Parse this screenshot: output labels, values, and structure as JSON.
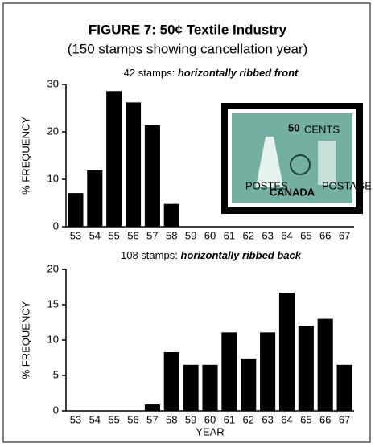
{
  "title": "FIGURE 7: 50¢ Textile Industry",
  "subtitle": "(150 stamps showing cancellation year)",
  "stamp": {
    "denomination": "50",
    "cents": "CENTS",
    "country": "CANADA",
    "left": "POSTES",
    "right": "POSTAGE"
  },
  "chart_data": [
    {
      "type": "bar",
      "title": "42 stamps:",
      "title_emphasis": "horizontally ribbed front",
      "ylabel": "% FREQUENCY",
      "color": "#000000",
      "categories": [
        "53",
        "54",
        "55",
        "56",
        "57",
        "58",
        "59",
        "60",
        "61",
        "62",
        "63",
        "64",
        "65",
        "66",
        "67"
      ],
      "values": [
        7.1,
        11.9,
        28.6,
        26.2,
        21.4,
        4.8,
        0,
        0,
        0,
        0,
        0,
        0,
        0,
        0,
        0
      ],
      "ylim": [
        0,
        30
      ],
      "yticks": [
        0,
        10,
        20,
        30
      ]
    },
    {
      "type": "bar",
      "title": "108 stamps:",
      "title_emphasis": "horizontally ribbed back",
      "ylabel": "% FREQUENCY",
      "xlabel": "YEAR",
      "color": "#000000",
      "categories": [
        "53",
        "54",
        "55",
        "56",
        "57",
        "58",
        "59",
        "60",
        "61",
        "62",
        "63",
        "64",
        "65",
        "66",
        "67"
      ],
      "values": [
        0,
        0,
        0,
        0,
        0.9,
        8.3,
        6.5,
        6.5,
        11.1,
        7.4,
        11.1,
        16.7,
        12.0,
        13.0,
        6.5
      ],
      "ylim": [
        0,
        20
      ],
      "yticks": [
        0,
        5,
        10,
        15,
        20
      ]
    }
  ]
}
